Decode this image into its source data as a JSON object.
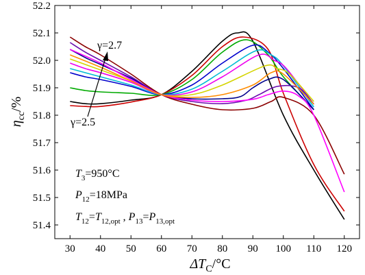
{
  "chart_data": {
    "type": "line",
    "ylabel": {
      "symbol": "η",
      "subscript": "cc",
      "unit": "/%"
    },
    "xlabel": {
      "symbol": "ΔT",
      "subscript": "C",
      "unit": "/°C"
    },
    "xlim": [
      25,
      125
    ],
    "ylim": [
      51.35,
      52.2
    ],
    "xticks": [
      30,
      40,
      50,
      60,
      70,
      80,
      90,
      100,
      110,
      120
    ],
    "yticks": [
      51.4,
      51.5,
      51.6,
      51.7,
      51.8,
      51.9,
      52.0,
      52.1,
      52.2
    ],
    "ytick_labels": [
      "51.4",
      "51.5",
      "51.6",
      "51.7",
      "51.8",
      "51.9",
      "52.0",
      "52.1",
      "52.2"
    ],
    "grid": false,
    "annotations": [
      {
        "id": "gamma-high",
        "text": "γ=2.7"
      },
      {
        "id": "gamma-low",
        "text": "γ=2.5"
      }
    ],
    "conditions": [
      {
        "id": "t3",
        "parts": [
          [
            "T",
            "3",
            "=950°C"
          ]
        ]
      },
      {
        "id": "p12",
        "parts": [
          [
            "P",
            "12",
            "=18MPa"
          ]
        ]
      },
      {
        "id": "t12",
        "parts": [
          [
            "T",
            "12",
            "="
          ],
          [
            "T",
            "12,opt",
            " , "
          ],
          [
            "P",
            "13",
            "="
          ],
          [
            "P",
            "13,opt",
            ""
          ]
        ]
      }
    ],
    "series": [
      {
        "color": "#000000",
        "x": [
          30,
          35,
          40,
          50,
          60,
          70,
          80,
          85,
          90,
          100,
          110,
          120
        ],
        "y": [
          51.85,
          51.842,
          51.842,
          51.855,
          51.875,
          51.96,
          52.07,
          52.1,
          52.07,
          51.8,
          51.6,
          51.42
        ]
      },
      {
        "color": "#cc0000",
        "x": [
          30,
          35,
          40,
          50,
          60,
          70,
          80,
          87,
          95,
          100,
          110,
          120
        ],
        "y": [
          51.835,
          51.832,
          51.832,
          51.848,
          51.875,
          51.945,
          52.05,
          52.085,
          52.04,
          51.88,
          51.62,
          51.45
        ]
      },
      {
        "color": "#00aa00",
        "x": [
          30,
          35,
          40,
          50,
          60,
          70,
          80,
          88,
          95,
          100,
          110
        ],
        "y": [
          51.9,
          51.89,
          51.885,
          51.88,
          51.875,
          51.93,
          52.03,
          52.075,
          52.02,
          51.94,
          51.82
        ]
      },
      {
        "color": "#0000cc",
        "x": [
          30,
          35,
          40,
          50,
          60,
          70,
          80,
          90,
          95,
          100,
          110
        ],
        "y": [
          51.955,
          51.94,
          51.93,
          51.905,
          51.875,
          51.91,
          51.99,
          52.055,
          52.03,
          51.97,
          51.82
        ]
      },
      {
        "color": "#00bcd4",
        "x": [
          30,
          35,
          40,
          50,
          60,
          70,
          80,
          91,
          96,
          100,
          110
        ],
        "y": [
          51.97,
          51.955,
          51.94,
          51.91,
          51.875,
          51.895,
          51.96,
          52.035,
          52.02,
          51.98,
          51.83
        ]
      },
      {
        "color": "#ee00ee",
        "x": [
          30,
          35,
          40,
          50,
          60,
          70,
          80,
          92,
          97,
          101,
          110
        ],
        "y": [
          51.99,
          51.97,
          51.955,
          51.92,
          51.875,
          51.885,
          51.94,
          52.02,
          52.0,
          51.97,
          51.84
        ]
      },
      {
        "color": "#d4d400",
        "x": [
          30,
          35,
          40,
          50,
          60,
          70,
          80,
          94,
          98,
          102,
          110
        ],
        "y": [
          52.005,
          51.985,
          51.965,
          51.925,
          51.875,
          51.875,
          51.91,
          51.98,
          51.97,
          51.95,
          51.85
        ]
      },
      {
        "color": "#00008b",
        "x": [
          30,
          35,
          40,
          50,
          60,
          70,
          80,
          86,
          90,
          95,
          100,
          110
        ],
        "y": [
          52.04,
          52.01,
          51.985,
          51.935,
          51.875,
          51.86,
          51.86,
          51.868,
          51.9,
          51.93,
          51.93,
          51.82
        ]
      },
      {
        "color": "#6a0dad",
        "x": [
          30,
          35,
          40,
          50,
          60,
          70,
          80,
          88,
          92,
          98,
          105,
          110
        ],
        "y": [
          52.065,
          52.03,
          52.0,
          51.94,
          51.875,
          51.85,
          51.842,
          51.855,
          51.875,
          51.905,
          51.9,
          51.84
        ]
      },
      {
        "color": "#8b0000",
        "x": [
          30,
          35,
          40,
          50,
          60,
          70,
          80,
          90,
          96,
          100,
          110,
          120
        ],
        "y": [
          52.085,
          52.05,
          52.02,
          51.95,
          51.875,
          51.84,
          51.82,
          51.825,
          51.85,
          51.865,
          51.8,
          51.585
        ]
      },
      {
        "color": "#ff00ff",
        "x": [
          30,
          40,
          50,
          60,
          70,
          80,
          90,
          95,
          100,
          105,
          110,
          120
        ],
        "y": [
          52.04,
          51.99,
          51.93,
          51.875,
          51.855,
          51.85,
          51.858,
          51.875,
          51.888,
          51.87,
          51.8,
          51.52
        ]
      },
      {
        "color": "#ff8c00",
        "x": [
          30,
          40,
          50,
          60,
          70,
          80,
          90,
          96,
          100,
          110
        ],
        "y": [
          52.02,
          51.975,
          51.925,
          51.875,
          51.865,
          51.875,
          51.91,
          51.955,
          51.95,
          51.84
        ]
      }
    ]
  }
}
